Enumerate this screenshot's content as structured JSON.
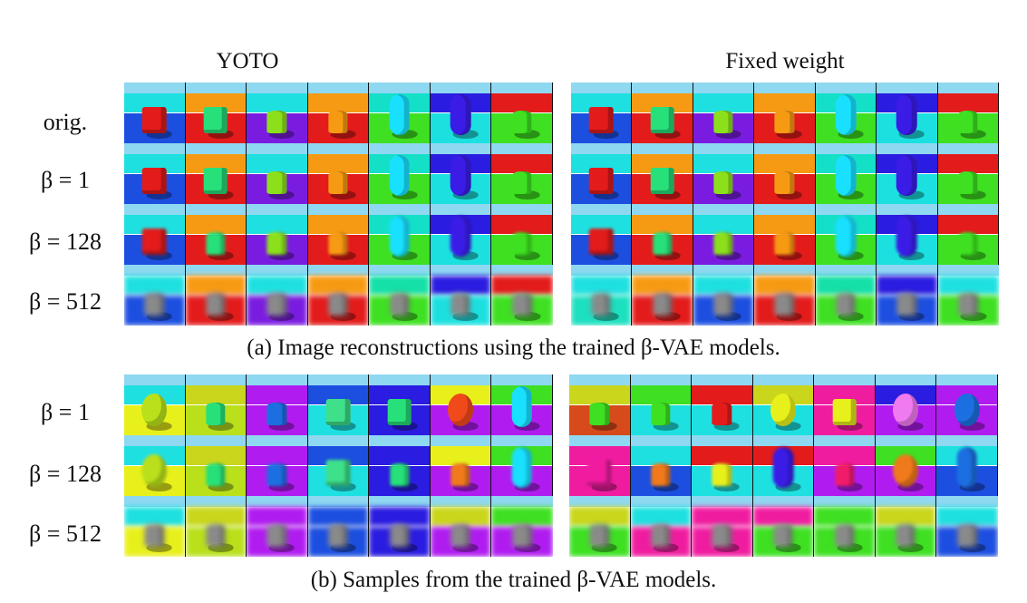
{
  "column_titles": {
    "left": "YOTO",
    "right": "Fixed weight"
  },
  "section_a": {
    "caption": "(a) Image reconstructions using the trained β-VAE models.",
    "row_labels": [
      "orig.",
      "β = 1",
      "β = 128",
      "β = 512"
    ]
  },
  "section_b": {
    "caption": "(b) Samples from the trained β-VAE models.",
    "row_labels": [
      "β = 1",
      "β = 128",
      "β = 512"
    ]
  },
  "images": {
    "a_left": [
      [
        "#1fe0e0|#1c4fe0|cube|#e31b1b",
        "#f79a13|#e31b1b|cube|#27e07a",
        "#1fe0e0|#7a1ce0|cyl|#8be01b",
        "#f79a13|#e31b1b|cyl|#f79a13",
        "#14e0c8|#3ee021|caps|#19e0ff",
        "#2a1ce0|#1ce0e0|caps|#3a1ce6",
        "#e31b1b|#3ee021|cyl|#3ee021"
      ],
      [
        "#1fe0e0|#1c4fe0|cube|#e31b1b",
        "#f79a13|#e31b1b|cube|#27e07a",
        "#1fe0e0|#7a1ce0|cyl|#8be01b",
        "#f79a13|#e31b1b|cyl|#f79a13",
        "#14e0c8|#3ee021|caps|#19e0ff",
        "#2a1ce0|#1ce0e0|caps|#3a1ce6",
        "#e31b1b|#3ee021|cyl|#3ee021"
      ],
      [
        "#1fe0e0|#1c4fe0|cube|#e31b1b",
        "#f79a13|#e31b1b|cyl|#27e07a",
        "#1fe0e0|#7a1ce0|cyl|#8be01b",
        "#f79a13|#e31b1b|cyl|#f79a13",
        "#14e0c8|#3ee021|caps|#19e0ff",
        "#2a1ce0|#1ce0e0|caps|#3a1ce6",
        "#e31b1b|#3ee021|cyl|#3ee021"
      ],
      [
        "#1fe0e0|#1c4fe0|cyl|#8a8a8a",
        "#f79a13|#e31b1b|cyl|#8a8a8a",
        "#1fe0e0|#7a1ce0|cyl|#8a8a8a",
        "#f79a13|#e31b1b|cyl|#8a8a8a",
        "#14e0a8|#3ee021|cyl|#8a8a8a",
        "#2a1ce0|#1ce0e0|cyl|#8a8a8a",
        "#e31b1b|#3ee021|cyl|#8a8a8a"
      ]
    ],
    "a_right": [
      [
        "#1fe0e0|#1c4fe0|cube|#e31b1b",
        "#f79a13|#e31b1b|cube|#27e07a",
        "#1fe0e0|#7a1ce0|cyl|#8be01b",
        "#f79a13|#e31b1b|cyl|#f79a13",
        "#14e0c8|#3ee021|caps|#19e0ff",
        "#2a1ce0|#1ce0e0|caps|#3a1ce6",
        "#e31b1b|#3ee021|cyl|#3ee021"
      ],
      [
        "#1fe0e0|#1c4fe0|cube|#e31b1b",
        "#f79a13|#e31b1b|cube|#27e07a",
        "#1fe0e0|#7a1ce0|cyl|#8be01b",
        "#f79a13|#e31b1b|cyl|#f79a13",
        "#14e0c8|#3ee021|caps|#19e0ff",
        "#2a1ce0|#1ce0e0|caps|#3a1ce6",
        "#e31b1b|#3ee021|cyl|#3ee021"
      ],
      [
        "#1fe0e0|#1c4fe0|cube|#e31b1b",
        "#f79a13|#e31b1b|cyl|#27e07a",
        "#1fe0e0|#7a1ce0|cyl|#8be01b",
        "#f79a13|#e31b1b|cyl|#f79a13",
        "#14e0c8|#3ee021|caps|#19e0ff",
        "#2a1ce0|#1ce0e0|caps|#3a1ce6",
        "#e31b1b|#3ee021|cyl|#3ee021"
      ],
      [
        "#1fe0e0|#1ce0c0|cyl|#8a8a8a",
        "#f79a13|#e31b1b|cyl|#8a8a8a",
        "#1fe0e0|#1c4fe0|cyl|#8a8a8a",
        "#f79a13|#e31b1b|cyl|#8a8a8a",
        "#14e0a8|#3ee021|cyl|#8a8a8a",
        "#2a1ce0|#1c4fe0|cyl|#8a8a8a",
        "#1fe0e0|#3ee021|cyl|#8a8a8a"
      ]
    ],
    "b_left": [
      [
        "#1fe0e0|#e8f01b|ball|#b9e01b",
        "#c9d61b|#b9e01b|cyl|#27e07a",
        "#b01cf0|#b01cf0|cyl|#1c6fe0",
        "#1c4fe0|#1fe0e0|cube|#3ee08a",
        "#2a1ce0|#2a1ce0|cube|#27e07a",
        "#e8f01b|#b01cf0|ball|#f04a1b",
        "#3ee021|#b01cf0|caps|#19e0ff"
      ],
      [
        "#1fe0e0|#e8f01b|ball|#b9e01b",
        "#c9d61b|#b9e01b|cyl|#27e07a",
        "#b01cf0|#b01cf0|cyl|#1c6fe0",
        "#1c4fe0|#1fe0e0|cube|#3ee08a",
        "#2a1ce0|#2a1ce0|cyl|#27e07a",
        "#e8f01b|#b01cf0|cyl|#f07a1b",
        "#3ee021|#b01cf0|caps|#19e0ff"
      ],
      [
        "#1fe0e0|#e8f01b|cyl|#8a8a8a",
        "#c9d61b|#b9e01b|cyl|#8a8a8a",
        "#b01cf0|#b01cf0|cyl|#8a8a8a",
        "#1c4fe0|#1c4fe0|cyl|#8a8a8a",
        "#2a1ce0|#2a1ce0|cyl|#8a8a8a",
        "#c9d61b|#b01cf0|cyl|#8a8a8a",
        "#3ee021|#b01cf0|cyl|#8a8a8a"
      ]
    ],
    "b_right": [
      [
        "#c9d61b|#d64a1b|cyl|#3ee021",
        "#3ee021|#1fe0e0|cyl|#3ee021",
        "#e31b1b|#1fe0e0|cyl|#e31b1b",
        "#c9d61b|#1ce0e0|ball|#e8f01b",
        "#f01ca0|#f01ca0|cube|#e8f01b",
        "#2a1ce0|#b01cf0|ball|#f07af0",
        "#b01cf0|#b01cf0|ball|#1c6fe0"
      ],
      [
        "#f01ca0|#f01ca0|cube|#f01ca0",
        "#1fe0e0|#1c4fe0|cyl|#f07a1b",
        "#e31b1b|#1fe0e0|cyl|#e8f01b",
        "#e31b1b|#1fe0e0|caps|#3a1ce6",
        "#f01ca0|#b01cf0|cyl|#f01c6a",
        "#3ee021|#b01cf0|ball|#f07a1b",
        "#1fe0e0|#1c4fe0|caps|#1c6fe0"
      ],
      [
        "#c9d61b|#3ee021|cyl|#8a8a8a",
        "#1fe0e0|#f01ca0|cyl|#8a8a8a",
        "#f01ca0|#f01ca0|cyl|#8a8a8a",
        "#f01ca0|#3ee021|cyl|#8a8a8a",
        "#3ee021|#3ee021|cyl|#8a8a8a",
        "#c9d61b|#3ee021|cyl|#8a8a8a",
        "#1fe0e0|#1c4fe0|cyl|#8a8a8a"
      ]
    ]
  }
}
